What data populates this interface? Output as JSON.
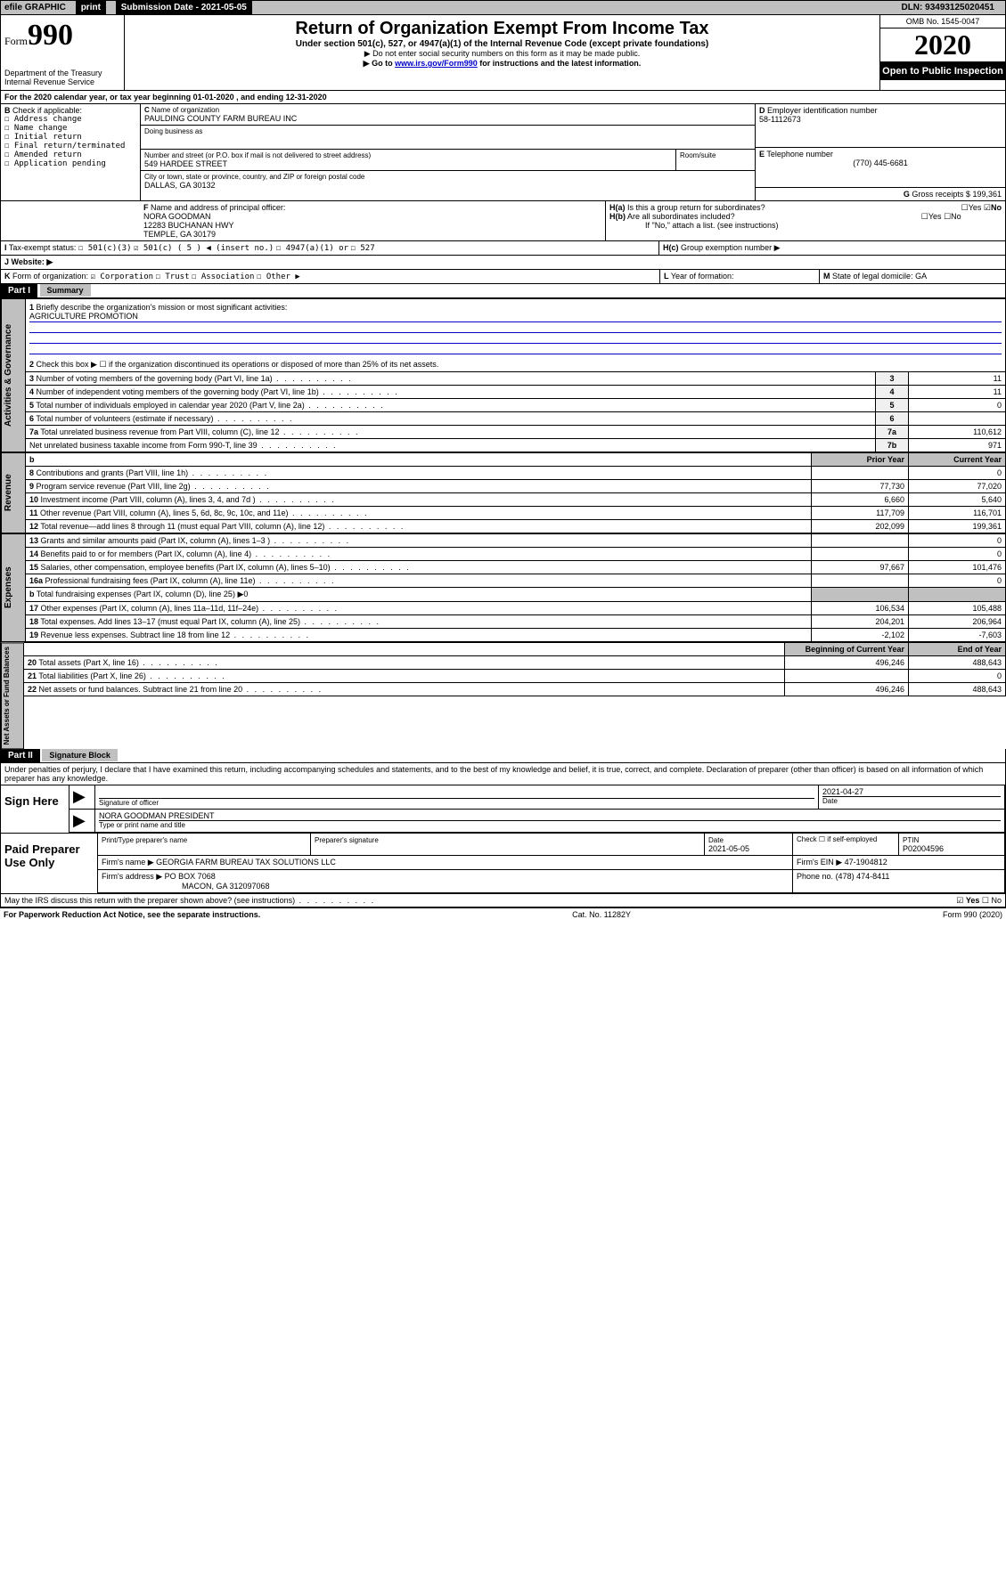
{
  "topbar": {
    "efile": "efile GRAPHIC",
    "print": "print",
    "subdate_label": "Submission Date - 2021-05-05",
    "dln": "DLN: 93493125020451"
  },
  "header": {
    "form_prefix": "Form",
    "form_number": "990",
    "dept": "Department of the Treasury",
    "irs": "Internal Revenue Service",
    "title": "Return of Organization Exempt From Income Tax",
    "subtitle": "Under section 501(c), 527, or 4947(a)(1) of the Internal Revenue Code (except private foundations)",
    "note1": "▶ Do not enter social security numbers on this form as it may be made public.",
    "note2_pre": "▶ Go to ",
    "note2_link": "www.irs.gov/Form990",
    "note2_post": " for instructions and the latest information.",
    "omb": "OMB No. 1545-0047",
    "year": "2020",
    "inspect": "Open to Public Inspection"
  },
  "periodA": "For the 2020 calendar year, or tax year beginning 01-01-2020    , and ending 12-31-2020",
  "boxB": {
    "label": "Check if applicable:",
    "opts": [
      "Address change",
      "Name change",
      "Initial return",
      "Final return/terminated",
      "Amended return",
      "Application pending"
    ]
  },
  "boxC": {
    "name_label": "Name of organization",
    "name": "PAULDING COUNTY FARM BUREAU INC",
    "dba_label": "Doing business as",
    "addr_label": "Number and street (or P.O. box if mail is not delivered to street address)",
    "addr": "549 HARDEE STREET",
    "room_label": "Room/suite",
    "city_label": "City or town, state or province, country, and ZIP or foreign postal code",
    "city": "DALLAS, GA  30132"
  },
  "boxD": {
    "label": "Employer identification number",
    "val": "58-1112673"
  },
  "boxE": {
    "label": "Telephone number",
    "val": "(770) 445-6681"
  },
  "boxG": {
    "label": "Gross receipts $",
    "val": "199,361"
  },
  "boxF": {
    "label": "Name and address of principal officer:",
    "name": "NORA GOODMAN",
    "addr1": "12283 BUCHANAN HWY",
    "addr2": "TEMPLE, GA  30179"
  },
  "boxH": {
    "a": "Is this a group return for subordinates?",
    "b": "Are all subordinates included?",
    "b_note": "If \"No,\" attach a list. (see instructions)",
    "c": "Group exemption number ▶",
    "a_ans": "No",
    "yes": "Yes",
    "no": "No"
  },
  "taxexempt": {
    "label": "Tax-exempt status:",
    "opts": [
      "501(c)(3)",
      "501(c) ( 5 ) ◀ (insert no.)",
      "4947(a)(1) or",
      "527"
    ],
    "checked_idx": 1
  },
  "boxI": "",
  "boxJ": {
    "label": "Website: ▶"
  },
  "boxK": {
    "label": "Form of organization:",
    "opts": [
      "Corporation",
      "Trust",
      "Association",
      "Other ▶"
    ],
    "checked_idx": 0
  },
  "boxL": {
    "label": "Year of formation:"
  },
  "boxM": {
    "label": "State of legal domicile:",
    "val": "GA"
  },
  "part1": {
    "hdr": "Part I",
    "title": "Summary",
    "line1_label": "Briefly describe the organization's mission or most significant activities:",
    "line1_val": "AGRICULTURE PROMOTION",
    "line2": "Check this box ▶ ☐  if the organization discontinued its operations or disposed of more than 25% of its net assets.",
    "tabs": {
      "gov": "Activities & Governance",
      "rev": "Revenue",
      "exp": "Expenses",
      "net": "Net Assets or Fund Balances"
    },
    "rows_gov": [
      {
        "n": "3",
        "txt": "Number of voting members of the governing body (Part VI, line 1a)",
        "idx": "3",
        "val": "11"
      },
      {
        "n": "4",
        "txt": "Number of independent voting members of the governing body (Part VI, line 1b)",
        "idx": "4",
        "val": "11"
      },
      {
        "n": "5",
        "txt": "Total number of individuals employed in calendar year 2020 (Part V, line 2a)",
        "idx": "5",
        "val": "0"
      },
      {
        "n": "6",
        "txt": "Total number of volunteers (estimate if necessary)",
        "idx": "6",
        "val": ""
      },
      {
        "n": "7a",
        "txt": "Total unrelated business revenue from Part VIII, column (C), line 12",
        "idx": "7a",
        "val": "110,612"
      },
      {
        "n": "",
        "txt": "Net unrelated business taxable income from Form 990-T, line 39",
        "idx": "7b",
        "val": "971"
      }
    ],
    "col_hdrs": {
      "prior": "Prior Year",
      "current": "Current Year",
      "begin": "Beginning of Current Year",
      "end": "End of Year"
    },
    "rows_rev": [
      {
        "n": "8",
        "txt": "Contributions and grants (Part VIII, line 1h)",
        "p": "",
        "c": "0"
      },
      {
        "n": "9",
        "txt": "Program service revenue (Part VIII, line 2g)",
        "p": "77,730",
        "c": "77,020"
      },
      {
        "n": "10",
        "txt": "Investment income (Part VIII, column (A), lines 3, 4, and 7d )",
        "p": "6,660",
        "c": "5,640"
      },
      {
        "n": "11",
        "txt": "Other revenue (Part VIII, column (A), lines 5, 6d, 8c, 9c, 10c, and 11e)",
        "p": "117,709",
        "c": "116,701"
      },
      {
        "n": "12",
        "txt": "Total revenue—add lines 8 through 11 (must equal Part VIII, column (A), line 12)",
        "p": "202,099",
        "c": "199,361"
      }
    ],
    "rows_exp": [
      {
        "n": "13",
        "txt": "Grants and similar amounts paid (Part IX, column (A), lines 1–3 )",
        "p": "",
        "c": "0"
      },
      {
        "n": "14",
        "txt": "Benefits paid to or for members (Part IX, column (A), line 4)",
        "p": "",
        "c": "0"
      },
      {
        "n": "15",
        "txt": "Salaries, other compensation, employee benefits (Part IX, column (A), lines 5–10)",
        "p": "97,667",
        "c": "101,476"
      },
      {
        "n": "16a",
        "txt": "Professional fundraising fees (Part IX, column (A), line 11e)",
        "p": "",
        "c": "0"
      },
      {
        "n": "b",
        "txt": "Total fundraising expenses (Part IX, column (D), line 25) ▶0",
        "p": null,
        "c": null
      },
      {
        "n": "17",
        "txt": "Other expenses (Part IX, column (A), lines 11a–11d, 11f–24e)",
        "p": "106,534",
        "c": "105,488"
      },
      {
        "n": "18",
        "txt": "Total expenses. Add lines 13–17 (must equal Part IX, column (A), line 25)",
        "p": "204,201",
        "c": "206,964"
      },
      {
        "n": "19",
        "txt": "Revenue less expenses. Subtract line 18 from line 12",
        "p": "-2,102",
        "c": "-7,603"
      }
    ],
    "rows_net": [
      {
        "n": "20",
        "txt": "Total assets (Part X, line 16)",
        "p": "496,246",
        "c": "488,643"
      },
      {
        "n": "21",
        "txt": "Total liabilities (Part X, line 26)",
        "p": "",
        "c": "0"
      },
      {
        "n": "22",
        "txt": "Net assets or fund balances. Subtract line 21 from line 20",
        "p": "496,246",
        "c": "488,643"
      }
    ]
  },
  "part2": {
    "hdr": "Part II",
    "title": "Signature Block",
    "perjury": "Under penalties of perjury, I declare that I have examined this return, including accompanying schedules and statements, and to the best of my knowledge and belief, it is true, correct, and complete. Declaration of preparer (other than officer) is based on all information of which preparer has any knowledge.",
    "sign": "Sign Here",
    "sig_officer": "Signature of officer",
    "sig_date": "2021-04-27",
    "date_lbl": "Date",
    "officer_name": "NORA GOODMAN  PRESIDENT",
    "type_lbl": "Type or print name and title",
    "paid": "Paid Preparer Use Only",
    "prep_name_lbl": "Print/Type preparer's name",
    "prep_sig_lbl": "Preparer's signature",
    "prep_date": "2021-05-05",
    "self_emp": "Check ☐ if self-employed",
    "ptin_lbl": "PTIN",
    "ptin": "P02004596",
    "firm_name_lbl": "Firm's name    ▶",
    "firm_name": "GEORGIA FARM BUREAU TAX SOLUTIONS LLC",
    "firm_ein_lbl": "Firm's EIN ▶",
    "firm_ein": "47-1904812",
    "firm_addr_lbl": "Firm's address ▶",
    "firm_addr1": "PO BOX 7068",
    "firm_addr2": "MACON, GA  312097068",
    "phone_lbl": "Phone no.",
    "phone": "(478) 474-8411",
    "discuss": "May the IRS discuss this return with the preparer shown above? (see instructions)",
    "discuss_ans": "Yes"
  },
  "footer": {
    "left": "For Paperwork Reduction Act Notice, see the separate instructions.",
    "mid": "Cat. No. 11282Y",
    "right": "Form 990 (2020)"
  }
}
